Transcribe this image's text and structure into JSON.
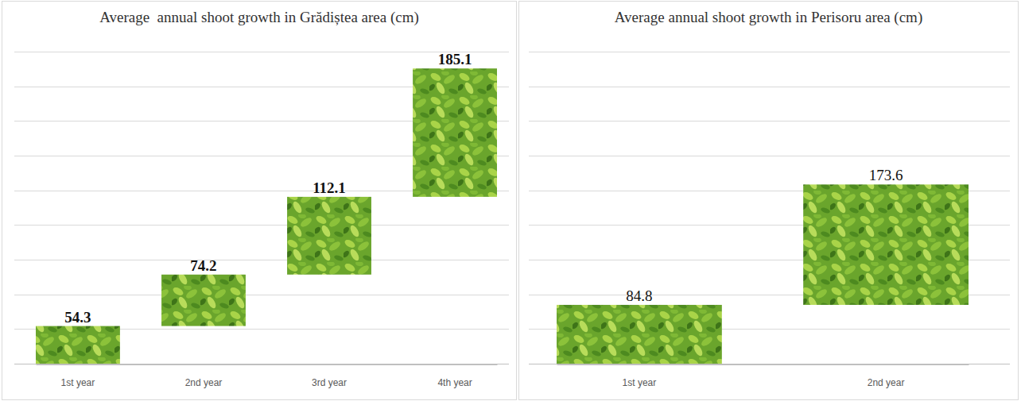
{
  "chart_data": [
    {
      "type": "waterfall",
      "title": "Average  annual shoot growth in Grădiștea area (cm)",
      "categories": [
        "1st year",
        "2nd year",
        "3rd year",
        "4th year"
      ],
      "values": [
        54.3,
        74.2,
        112.1,
        185.1
      ],
      "color": "#6aa52c",
      "ylim": [
        0,
        450
      ],
      "yticks": [
        0,
        50,
        100,
        150,
        200,
        250,
        300,
        350,
        400,
        450
      ],
      "grid": true,
      "data_labels": true,
      "tick_labels": "x"
    },
    {
      "type": "waterfall",
      "title": "Average annual shoot growth in Perisoru area (cm)",
      "categories": [
        "1st year",
        "2nd year"
      ],
      "values": [
        84.8,
        173.6
      ],
      "color": "#6aa52c",
      "ylim": [
        0,
        450
      ],
      "yticks": [
        0,
        50,
        100,
        150,
        200,
        250,
        300,
        350,
        400,
        450
      ],
      "grid": true,
      "data_labels": true,
      "tick_labels": "x"
    }
  ]
}
